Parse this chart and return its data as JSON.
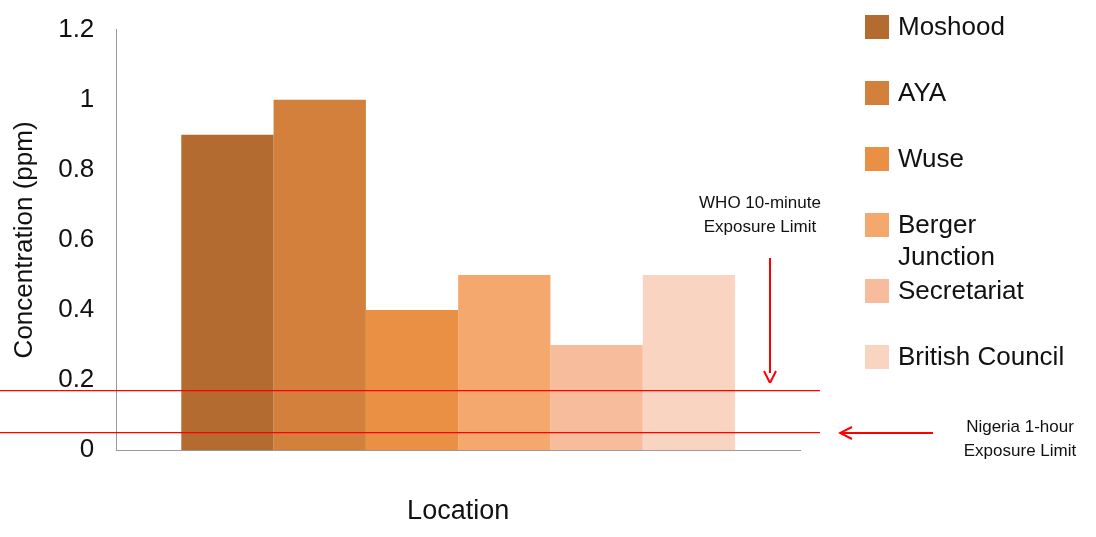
{
  "chart_data": {
    "type": "bar",
    "xlabel": "Location",
    "ylabel": "Concentration (ppm)",
    "categories": [
      null
    ],
    "series": [
      {
        "name": "Moshood",
        "color": "#b36b30",
        "values": [
          0.9
        ]
      },
      {
        "name": "AYA",
        "color": "#d2803b",
        "values": [
          1.0
        ]
      },
      {
        "name": "Wuse",
        "color": "#ea9044",
        "values": [
          0.4
        ]
      },
      {
        "name": "Berger Junction",
        "color": "#f4a86e",
        "values": [
          0.5
        ]
      },
      {
        "name": "Secretariat",
        "color": "#f6bc9b",
        "values": [
          0.3
        ]
      },
      {
        "name": "British Council",
        "color": "#f9d4c0",
        "values": [
          0.5
        ]
      }
    ],
    "ylim": [
      0,
      1.2
    ],
    "yticks": [
      0,
      0.2,
      0.4,
      0.6,
      0.8,
      1,
      1.2
    ],
    "grid": false,
    "legend": "right",
    "ref_lines": [
      {
        "axis": "y",
        "value": 0.17,
        "color": "#ff0000"
      },
      {
        "axis": "y",
        "value": 0.05,
        "color": "#ff0000"
      }
    ],
    "annotations": [
      "WHO 10-minute Exposure Limit",
      "Nigeria 1-hour Exposure Limit"
    ]
  }
}
